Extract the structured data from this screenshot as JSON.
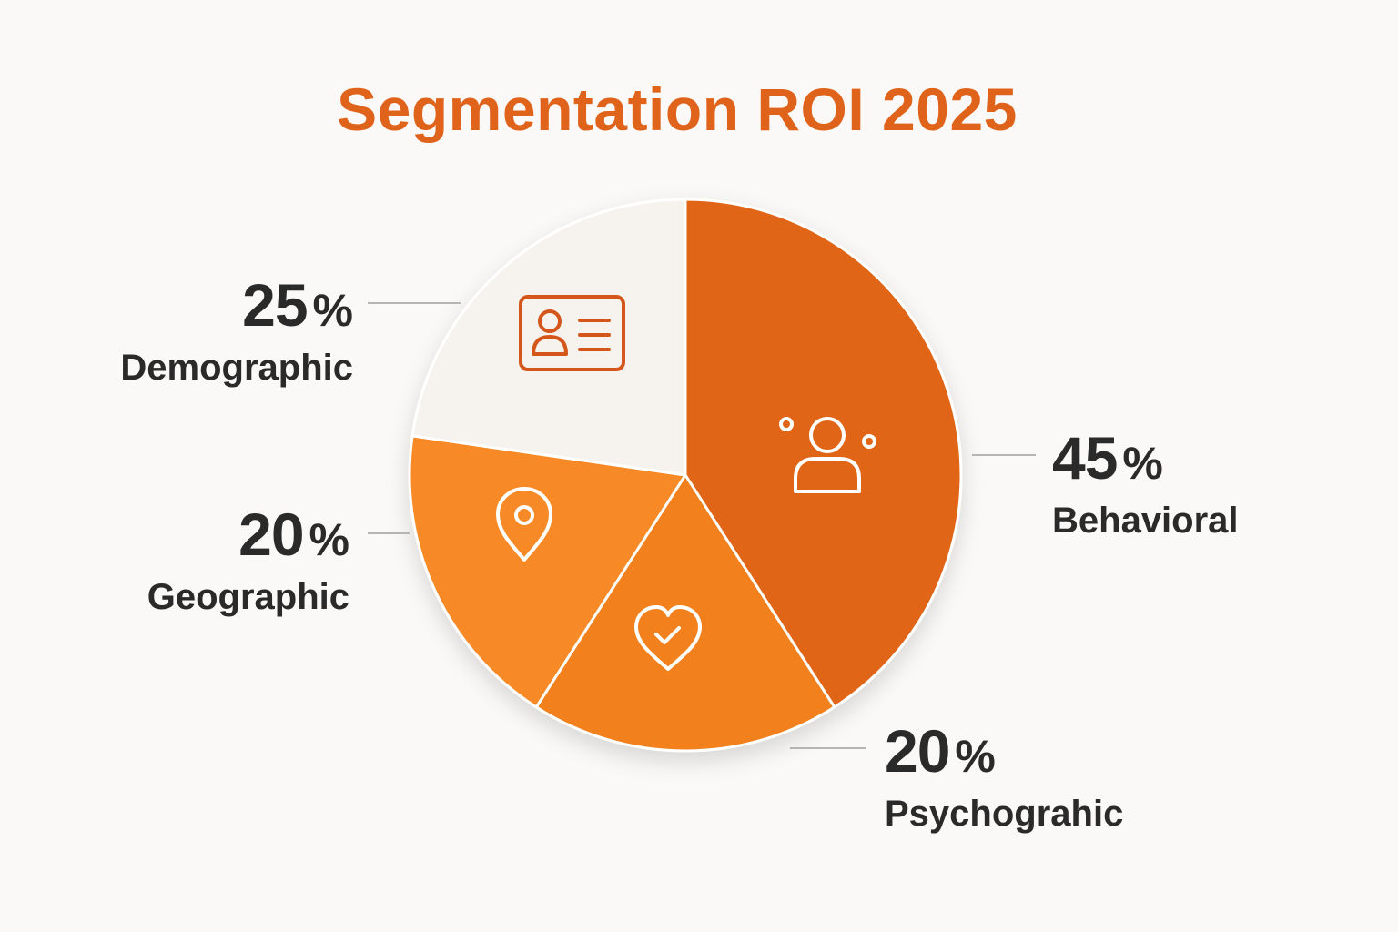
{
  "chart_data": {
    "type": "pie",
    "title": "Segmentation ROI 2025",
    "slices": [
      {
        "label": "Behavioral",
        "value": 45,
        "percent_symbol": "%",
        "color": "#e06515",
        "icon": "user-with-dots-icon"
      },
      {
        "label": "Psychograhic",
        "value": 20,
        "percent_symbol": "%",
        "color": "#f2801f",
        "icon": "heart-check-icon"
      },
      {
        "label": "Geographic",
        "value": 20,
        "percent_symbol": "%",
        "color": "#f78a25",
        "icon": "map-pin-icon"
      },
      {
        "label": "Demographic",
        "value": 25,
        "percent_symbol": "%",
        "color": "#f6f2ed",
        "icon": "id-card-icon"
      }
    ],
    "colors": {
      "title": "#e0631b",
      "text": "#2a2a2a",
      "leader_line": "#b5b5b5",
      "icon_light": "#ffffff",
      "icon_dark": "#d4561a",
      "background": "#fbf9f7"
    }
  }
}
